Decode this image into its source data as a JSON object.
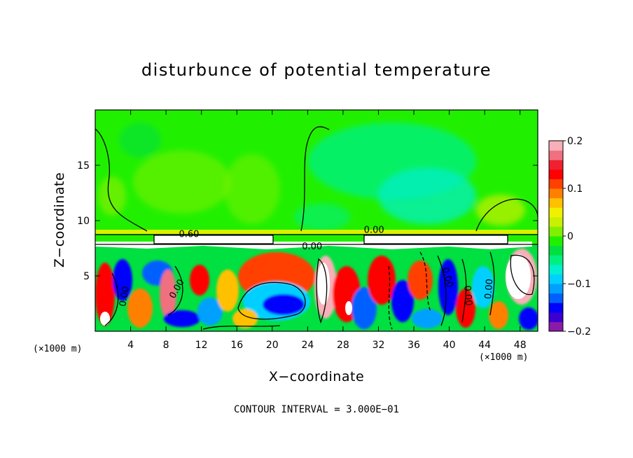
{
  "chart_data": {
    "type": "heatmap",
    "title": "disturbunce of potential temperature",
    "xlabel": "X−coordinate",
    "ylabel": "Z−coordinate",
    "x_unit": "(×1000 m)",
    "note": "CONTOUR INTERVAL = 3.000E−01",
    "xlim": [
      0,
      50
    ],
    "ylim": [
      0,
      20
    ],
    "x_ticks": [
      {
        "value": 4,
        "label": "4"
      },
      {
        "value": 8,
        "label": "8"
      },
      {
        "value": 12,
        "label": "12"
      },
      {
        "value": 16,
        "label": "16"
      },
      {
        "value": 20,
        "label": "20"
      },
      {
        "value": 24,
        "label": "24"
      },
      {
        "value": 28,
        "label": "28"
      },
      {
        "value": 32,
        "label": "32"
      },
      {
        "value": 36,
        "label": "36"
      },
      {
        "value": 40,
        "label": "40"
      },
      {
        "value": 44,
        "label": "44"
      },
      {
        "value": 48,
        "label": "48"
      }
    ],
    "y_ticks": [
      {
        "value": 5,
        "label": "5"
      },
      {
        "value": 10,
        "label": "10"
      },
      {
        "value": 15,
        "label": "15"
      }
    ],
    "colorbar": {
      "range": [
        -0.2,
        0.2
      ],
      "ticks": [
        {
          "value": 0.2,
          "label": "0.2"
        },
        {
          "value": 0.1,
          "label": "0.1"
        },
        {
          "value": 0,
          "label": "0"
        },
        {
          "value": -0.1,
          "label": "−0.1"
        },
        {
          "value": -0.2,
          "label": "−0.2"
        }
      ],
      "colors": [
        "#8a1aa8",
        "#3a00d0",
        "#0000ff",
        "#0060ff",
        "#00a0ff",
        "#00d0ff",
        "#00f0d0",
        "#00f080",
        "#00e040",
        "#20f000",
        "#80f000",
        "#c8f000",
        "#f0f000",
        "#ffc000",
        "#ff8000",
        "#ff4000",
        "#ff0000",
        "#f02030",
        "#f07080",
        "#f8b0b8"
      ]
    },
    "contour_labels": [
      {
        "x": 10.6,
        "z": 8.5,
        "label": "0.60",
        "angle": 0
      },
      {
        "x": 31.5,
        "z": 8.9,
        "label": "0.00",
        "angle": 0
      },
      {
        "x": 24.5,
        "z": 7.4,
        "label": "0.00",
        "angle": 0
      },
      {
        "x": 3.6,
        "z": 3.1,
        "label": "0.00",
        "angle": -80
      },
      {
        "x": 9.5,
        "z": 3.7,
        "label": "0.00",
        "angle": -60
      },
      {
        "x": 39.5,
        "z": 4.8,
        "label": "0.00",
        "angle": 75
      },
      {
        "x": 41.8,
        "z": 3.2,
        "label": "0.00",
        "angle": 85
      },
      {
        "x": 44.8,
        "z": 3.8,
        "label": "0.00",
        "angle": -85
      }
    ]
  }
}
